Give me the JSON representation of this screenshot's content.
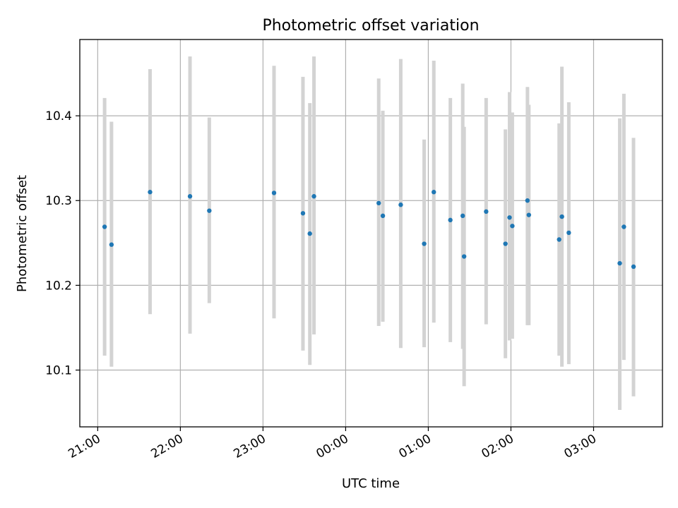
{
  "chart_data": {
    "type": "scatter",
    "title": "Photometric offset variation",
    "xlabel": "UTC time",
    "ylabel": "Photometric offset",
    "x_unit": "UTC time (HH:MM)",
    "xlim": [
      "20:47",
      "03:50"
    ],
    "ylim": [
      10.033,
      10.49
    ],
    "x_ticks": [
      "21:00",
      "22:00",
      "23:00",
      "00:00",
      "01:00",
      "02:00",
      "03:00"
    ],
    "y_ticks": [
      10.1,
      10.2,
      10.3,
      10.4
    ],
    "y_tick_labels": [
      "10.1",
      "10.2",
      "10.3",
      "10.4"
    ],
    "grid": true,
    "legend": "none",
    "colors": {
      "points": "#1f77b4",
      "error_bars": "#d3d3d3",
      "grid": "#b0b0b0"
    },
    "points": [
      {
        "x": "21:05",
        "y": 10.269,
        "ylow": 10.117,
        "yhigh": 10.421
      },
      {
        "x": "21:10",
        "y": 10.248,
        "ylow": 10.104,
        "yhigh": 10.393
      },
      {
        "x": "21:38",
        "y": 10.31,
        "ylow": 10.166,
        "yhigh": 10.455
      },
      {
        "x": "22:07",
        "y": 10.305,
        "ylow": 10.143,
        "yhigh": 10.47
      },
      {
        "x": "22:21",
        "y": 10.288,
        "ylow": 10.179,
        "yhigh": 10.398
      },
      {
        "x": "23:08",
        "y": 10.309,
        "ylow": 10.161,
        "yhigh": 10.459
      },
      {
        "x": "23:29",
        "y": 10.285,
        "ylow": 10.123,
        "yhigh": 10.446
      },
      {
        "x": "23:34",
        "y": 10.261,
        "ylow": 10.106,
        "yhigh": 10.415
      },
      {
        "x": "23:37",
        "y": 10.305,
        "ylow": 10.142,
        "yhigh": 10.47
      },
      {
        "x": "00:24",
        "y": 10.297,
        "ylow": 10.152,
        "yhigh": 10.444
      },
      {
        "x": "00:27",
        "y": 10.282,
        "ylow": 10.157,
        "yhigh": 10.406
      },
      {
        "x": "00:40",
        "y": 10.295,
        "ylow": 10.126,
        "yhigh": 10.467
      },
      {
        "x": "00:57",
        "y": 10.249,
        "ylow": 10.127,
        "yhigh": 10.372
      },
      {
        "x": "01:04",
        "y": 10.31,
        "ylow": 10.156,
        "yhigh": 10.465
      },
      {
        "x": "01:16",
        "y": 10.277,
        "ylow": 10.133,
        "yhigh": 10.421
      },
      {
        "x": "01:25",
        "y": 10.282,
        "ylow": 10.125,
        "yhigh": 10.438
      },
      {
        "x": "01:26",
        "y": 10.234,
        "ylow": 10.081,
        "yhigh": 10.387
      },
      {
        "x": "01:42",
        "y": 10.287,
        "ylow": 10.154,
        "yhigh": 10.421
      },
      {
        "x": "01:56",
        "y": 10.249,
        "ylow": 10.114,
        "yhigh": 10.384
      },
      {
        "x": "01:59",
        "y": 10.28,
        "ylow": 10.135,
        "yhigh": 10.428
      },
      {
        "x": "02:01",
        "y": 10.27,
        "ylow": 10.137,
        "yhigh": 10.404
      },
      {
        "x": "02:12",
        "y": 10.3,
        "ylow": 10.153,
        "yhigh": 10.434
      },
      {
        "x": "02:13",
        "y": 10.283,
        "ylow": 10.153,
        "yhigh": 10.413
      },
      {
        "x": "02:35",
        "y": 10.254,
        "ylow": 10.117,
        "yhigh": 10.391
      },
      {
        "x": "02:37",
        "y": 10.281,
        "ylow": 10.104,
        "yhigh": 10.458
      },
      {
        "x": "02:42",
        "y": 10.262,
        "ylow": 10.107,
        "yhigh": 10.416
      },
      {
        "x": "03:19",
        "y": 10.226,
        "ylow": 10.053,
        "yhigh": 10.397
      },
      {
        "x": "03:22",
        "y": 10.269,
        "ylow": 10.112,
        "yhigh": 10.426
      },
      {
        "x": "03:29",
        "y": 10.222,
        "ylow": 10.069,
        "yhigh": 10.374
      }
    ]
  }
}
